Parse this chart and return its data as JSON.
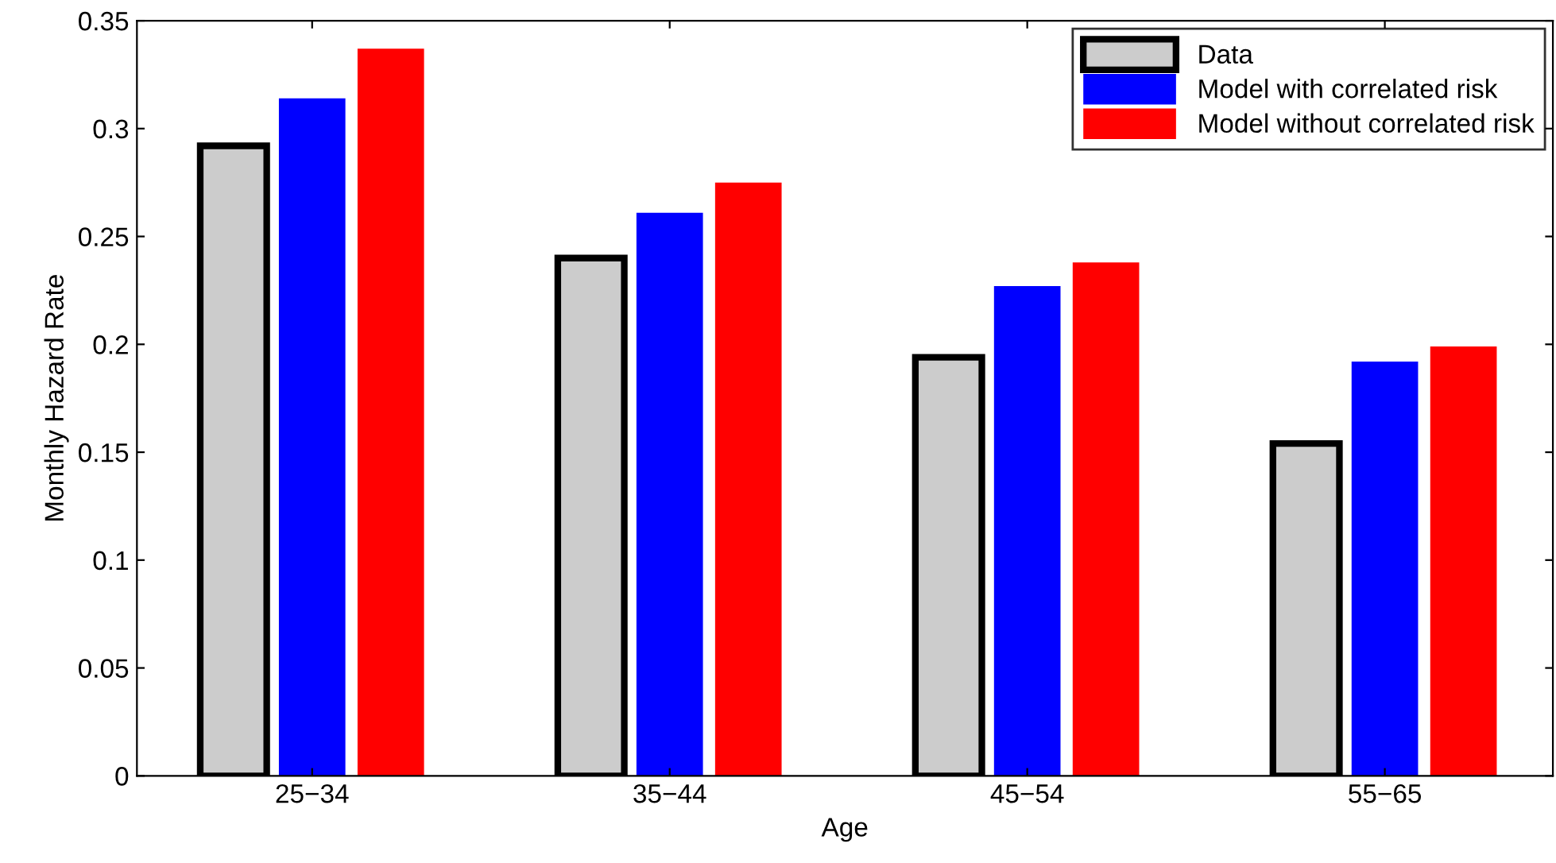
{
  "chart_data": {
    "type": "bar",
    "xlabel": "Age",
    "ylabel": "Monthly Hazard Rate",
    "categories": [
      "25−34",
      "35−44",
      "45−54",
      "55−65"
    ],
    "series": [
      {
        "name": "Data",
        "color": "#cccccc",
        "values": [
          0.292,
          0.24,
          0.194,
          0.154
        ]
      },
      {
        "name": "Model with correlated risk",
        "color": "#0000ff",
        "values": [
          0.314,
          0.261,
          0.227,
          0.192
        ]
      },
      {
        "name": "Model without correlated risk",
        "color": "#ff0000",
        "values": [
          0.337,
          0.275,
          0.238,
          0.199
        ]
      }
    ],
    "ylim": [
      0,
      0.35
    ],
    "yticks": [
      0,
      0.05,
      0.1,
      0.15,
      0.2,
      0.25,
      0.3,
      0.35
    ],
    "grid": false,
    "legend": "top right"
  }
}
